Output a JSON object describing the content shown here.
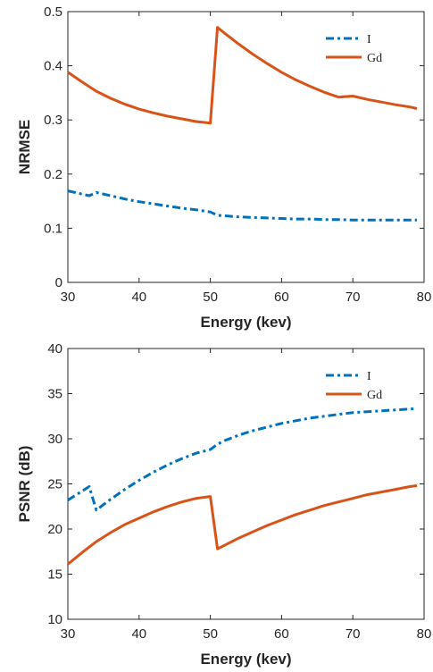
{
  "colors": {
    "I": "#0072BD",
    "Gd": "#D95319",
    "axis": "#262626"
  },
  "chart_data": [
    {
      "type": "line",
      "title": "",
      "xlabel": "Energy (kev)",
      "ylabel": "NRMSE",
      "xlim": [
        30,
        80
      ],
      "ylim": [
        0,
        0.5
      ],
      "xticks": [
        "30",
        "40",
        "50",
        "60",
        "70",
        "80"
      ],
      "yticks": [
        "0",
        "0.1",
        "0.2",
        "0.3",
        "0.4",
        "0.5"
      ],
      "legend_position": "top-right",
      "series": [
        {
          "name": "I",
          "style": "dash-dot",
          "color": "#0072BD",
          "x": [
            30,
            31,
            32,
            33,
            34,
            35,
            36,
            38,
            40,
            42,
            44,
            46,
            48,
            49,
            50,
            51,
            52,
            54,
            56,
            58,
            60,
            62,
            64,
            66,
            68,
            70,
            72,
            74,
            76,
            78,
            79
          ],
          "y": [
            0.169,
            0.166,
            0.163,
            0.16,
            0.166,
            0.163,
            0.16,
            0.154,
            0.149,
            0.145,
            0.141,
            0.137,
            0.134,
            0.132,
            0.13,
            0.124,
            0.123,
            0.121,
            0.12,
            0.119,
            0.118,
            0.117,
            0.117,
            0.116,
            0.116,
            0.115,
            0.115,
            0.115,
            0.115,
            0.115,
            0.115
          ]
        },
        {
          "name": "Gd",
          "style": "solid",
          "color": "#D95319",
          "x": [
            30,
            32,
            34,
            36,
            38,
            40,
            42,
            44,
            46,
            48,
            50,
            51,
            52,
            54,
            56,
            58,
            60,
            62,
            64,
            66,
            68,
            70,
            72,
            74,
            76,
            78,
            79
          ],
          "y": [
            0.388,
            0.37,
            0.353,
            0.34,
            0.329,
            0.32,
            0.313,
            0.307,
            0.302,
            0.297,
            0.294,
            0.471,
            0.46,
            0.44,
            0.421,
            0.404,
            0.388,
            0.374,
            0.362,
            0.351,
            0.342,
            0.344,
            0.338,
            0.333,
            0.328,
            0.324,
            0.321
          ]
        }
      ]
    },
    {
      "type": "line",
      "title": "",
      "xlabel": "Energy (kev)",
      "ylabel": "PSNR (dB)",
      "xlim": [
        30,
        80
      ],
      "ylim": [
        10,
        40
      ],
      "xticks": [
        "30",
        "40",
        "50",
        "60",
        "70",
        "80"
      ],
      "yticks": [
        "10",
        "15",
        "20",
        "25",
        "30",
        "35",
        "40"
      ],
      "legend_position": "top-right",
      "series": [
        {
          "name": "I",
          "style": "dash-dot",
          "color": "#0072BD",
          "x": [
            30,
            31,
            32,
            33,
            34,
            35,
            36,
            38,
            40,
            42,
            44,
            46,
            48,
            50,
            51,
            52,
            54,
            56,
            58,
            60,
            62,
            64,
            66,
            68,
            70,
            72,
            74,
            76,
            78,
            79
          ],
          "y": [
            23.2,
            23.7,
            24.2,
            24.7,
            22.1,
            22.7,
            23.3,
            24.4,
            25.4,
            26.3,
            27.1,
            27.8,
            28.4,
            28.8,
            29.4,
            29.8,
            30.4,
            30.9,
            31.3,
            31.7,
            32.0,
            32.3,
            32.5,
            32.7,
            32.9,
            33.0,
            33.1,
            33.2,
            33.3,
            33.35
          ]
        },
        {
          "name": "Gd",
          "style": "solid",
          "color": "#D95319",
          "x": [
            30,
            32,
            34,
            36,
            38,
            40,
            42,
            44,
            46,
            48,
            50,
            51,
            52,
            54,
            56,
            58,
            60,
            62,
            64,
            66,
            68,
            70,
            72,
            74,
            76,
            78,
            79
          ],
          "y": [
            16.1,
            17.4,
            18.6,
            19.6,
            20.5,
            21.2,
            21.9,
            22.5,
            23.0,
            23.4,
            23.6,
            17.8,
            18.2,
            19.0,
            19.7,
            20.4,
            21.0,
            21.6,
            22.1,
            22.6,
            23.0,
            23.4,
            23.8,
            24.1,
            24.4,
            24.7,
            24.8
          ]
        }
      ]
    }
  ]
}
